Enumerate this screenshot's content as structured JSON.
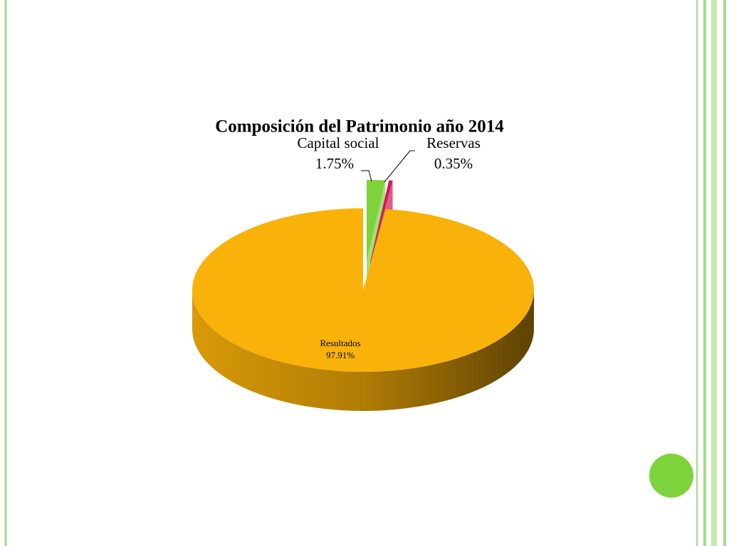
{
  "chart_data": {
    "type": "pie",
    "title": "Composición del Patrimonio año 2014",
    "categories": [
      "Capital social",
      "Reservas",
      "Resultados"
    ],
    "values": [
      1.75,
      0.35,
      97.91
    ],
    "value_labels": [
      "1.75%",
      "0.35%",
      "97.91%"
    ],
    "colors": [
      "#7ed23b",
      "#d4145a",
      "#f9b20a"
    ]
  }
}
